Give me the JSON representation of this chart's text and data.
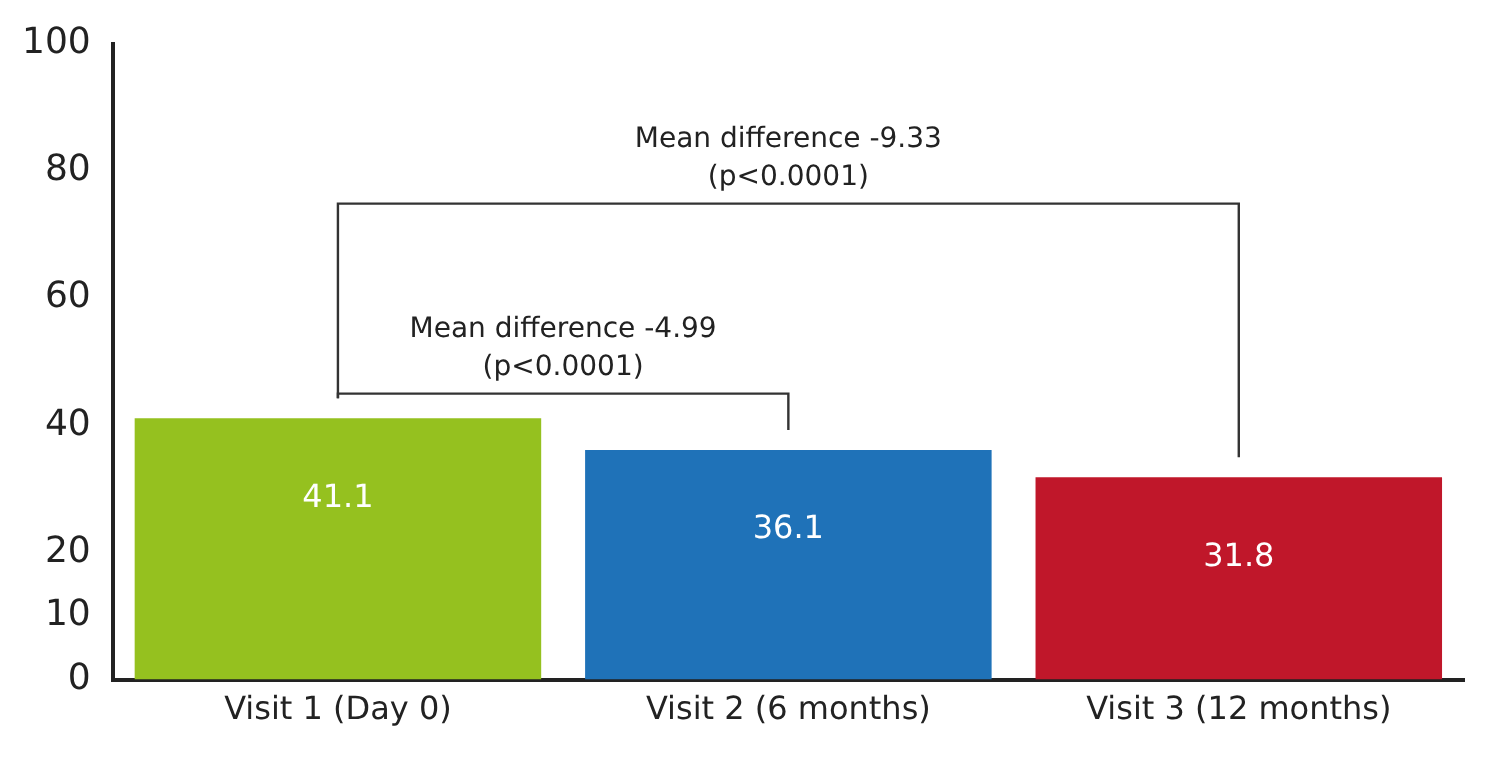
{
  "chart_data": {
    "type": "bar",
    "categories": [
      "Visit 1 (Day 0)",
      "Visit 2 (6 months)",
      "Visit 3 (12 months)"
    ],
    "values": [
      41.1,
      36.1,
      31.8
    ],
    "colors": [
      "#95c11f",
      "#1f72b8",
      "#c0172a"
    ],
    "ylim": [
      0,
      100
    ],
    "yticks": [
      0,
      10,
      20,
      40,
      60,
      80,
      100
    ],
    "grid": false,
    "data_labels": true,
    "annotations": [
      "Mean difference -4.99\n(p<0.0001)",
      "Mean difference -9.33\n(p<0.0001)"
    ]
  }
}
